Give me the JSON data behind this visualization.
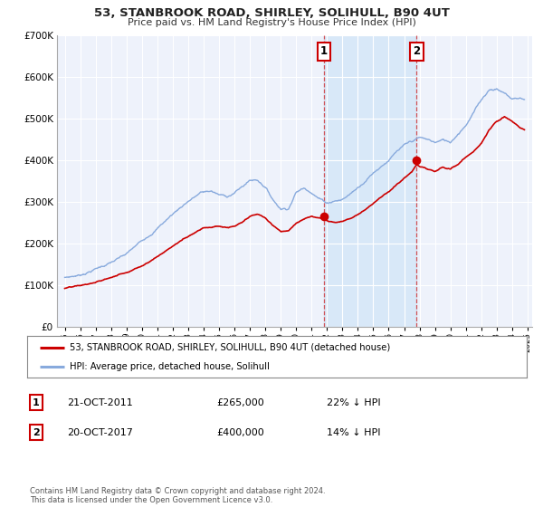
{
  "title": "53, STANBROOK ROAD, SHIRLEY, SOLIHULL, B90 4UT",
  "subtitle": "Price paid vs. HM Land Registry's House Price Index (HPI)",
  "background_color": "#ffffff",
  "plot_bg_color": "#eef2fb",
  "grid_color": "#ffffff",
  "sale1_date_x": 2011.8,
  "sale1_price": 265000,
  "sale2_date_x": 2017.8,
  "sale2_price": 400000,
  "legend_label_red": "53, STANBROOK ROAD, SHIRLEY, SOLIHULL, B90 4UT (detached house)",
  "legend_label_blue": "HPI: Average price, detached house, Solihull",
  "annotation1_date": "21-OCT-2011",
  "annotation1_price": "£265,000",
  "annotation1_pct": "22% ↓ HPI",
  "annotation2_date": "20-OCT-2017",
  "annotation2_price": "£400,000",
  "annotation2_pct": "14% ↓ HPI",
  "footer": "Contains HM Land Registry data © Crown copyright and database right 2024.\nThis data is licensed under the Open Government Licence v3.0.",
  "red_color": "#cc0000",
  "blue_color": "#88aadd",
  "shade_color": "#d8e8f8",
  "ylim": [
    0,
    700000
  ],
  "xlim_start": 1994.5,
  "xlim_end": 2025.3,
  "hpi_key_points": [
    [
      1995.0,
      118000
    ],
    [
      1996.0,
      125000
    ],
    [
      1997.0,
      142000
    ],
    [
      1998.0,
      158000
    ],
    [
      1999.0,
      175000
    ],
    [
      2000.0,
      205000
    ],
    [
      2001.0,
      240000
    ],
    [
      2002.0,
      275000
    ],
    [
      2003.0,
      308000
    ],
    [
      2003.8,
      328000
    ],
    [
      2004.5,
      332000
    ],
    [
      2005.0,
      322000
    ],
    [
      2005.5,
      318000
    ],
    [
      2006.0,
      328000
    ],
    [
      2006.5,
      342000
    ],
    [
      2007.0,
      358000
    ],
    [
      2007.5,
      360000
    ],
    [
      2008.0,
      345000
    ],
    [
      2008.5,
      315000
    ],
    [
      2009.0,
      295000
    ],
    [
      2009.5,
      298000
    ],
    [
      2010.0,
      338000
    ],
    [
      2010.5,
      348000
    ],
    [
      2011.0,
      342000
    ],
    [
      2011.5,
      328000
    ],
    [
      2012.0,
      318000
    ],
    [
      2012.5,
      325000
    ],
    [
      2013.0,
      328000
    ],
    [
      2013.5,
      342000
    ],
    [
      2014.0,
      358000
    ],
    [
      2014.5,
      378000
    ],
    [
      2015.0,
      398000
    ],
    [
      2015.5,
      415000
    ],
    [
      2016.0,
      432000
    ],
    [
      2016.5,
      450000
    ],
    [
      2017.0,
      462000
    ],
    [
      2017.5,
      470000
    ],
    [
      2018.0,
      478000
    ],
    [
      2018.5,
      472000
    ],
    [
      2019.0,
      465000
    ],
    [
      2019.5,
      470000
    ],
    [
      2020.0,
      465000
    ],
    [
      2020.5,
      488000
    ],
    [
      2021.0,
      512000
    ],
    [
      2021.5,
      542000
    ],
    [
      2022.0,
      572000
    ],
    [
      2022.5,
      598000
    ],
    [
      2023.0,
      602000
    ],
    [
      2023.5,
      592000
    ],
    [
      2024.0,
      578000
    ],
    [
      2024.5,
      582000
    ],
    [
      2024.8,
      578000
    ]
  ],
  "red_key_points": [
    [
      1995.0,
      93000
    ],
    [
      1996.0,
      97000
    ],
    [
      1997.0,
      104000
    ],
    [
      1998.0,
      116000
    ],
    [
      1999.0,
      130000
    ],
    [
      2000.0,
      148000
    ],
    [
      2001.0,
      172000
    ],
    [
      2002.0,
      198000
    ],
    [
      2003.0,
      222000
    ],
    [
      2004.0,
      246000
    ],
    [
      2005.0,
      250000
    ],
    [
      2005.5,
      246000
    ],
    [
      2006.0,
      248000
    ],
    [
      2006.5,
      256000
    ],
    [
      2007.0,
      268000
    ],
    [
      2007.5,
      274000
    ],
    [
      2008.0,
      264000
    ],
    [
      2008.5,
      246000
    ],
    [
      2009.0,
      233000
    ],
    [
      2009.5,
      236000
    ],
    [
      2010.0,
      252000
    ],
    [
      2010.5,
      262000
    ],
    [
      2011.0,
      267000
    ],
    [
      2011.5,
      265000
    ],
    [
      2011.8,
      265000
    ],
    [
      2012.0,
      261000
    ],
    [
      2012.5,
      256000
    ],
    [
      2013.0,
      258000
    ],
    [
      2013.5,
      266000
    ],
    [
      2014.0,
      278000
    ],
    [
      2014.5,
      292000
    ],
    [
      2015.0,
      308000
    ],
    [
      2015.5,
      323000
    ],
    [
      2016.0,
      338000
    ],
    [
      2016.5,
      352000
    ],
    [
      2017.0,
      368000
    ],
    [
      2017.5,
      383000
    ],
    [
      2017.8,
      400000
    ],
    [
      2018.0,
      396000
    ],
    [
      2018.5,
      388000
    ],
    [
      2019.0,
      383000
    ],
    [
      2019.5,
      390000
    ],
    [
      2020.0,
      386000
    ],
    [
      2020.5,
      398000
    ],
    [
      2021.0,
      413000
    ],
    [
      2021.5,
      428000
    ],
    [
      2022.0,
      448000
    ],
    [
      2022.5,
      478000
    ],
    [
      2023.0,
      498000
    ],
    [
      2023.5,
      508000
    ],
    [
      2024.0,
      496000
    ],
    [
      2024.5,
      478000
    ],
    [
      2024.8,
      475000
    ]
  ]
}
